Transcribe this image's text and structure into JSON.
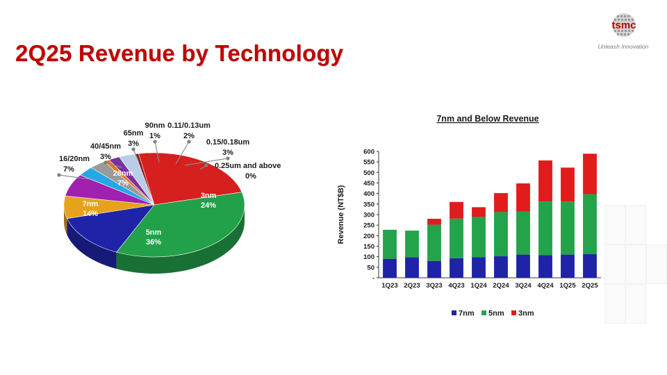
{
  "slide": {
    "title": "2Q25 Revenue by Technology",
    "logo_text": "tsmc",
    "logo_tagline": "Unleash Innovation"
  },
  "colors": {
    "title_red": "#c00000",
    "n7": "#1f23a8",
    "n5": "#23a34a",
    "n3": "#e01c1c"
  },
  "chart_data": [
    {
      "type": "pie",
      "title": "",
      "slices": [
        {
          "label": "3nm",
          "value": 24,
          "pct_text": "24%",
          "color": "#d61f1f"
        },
        {
          "label": "5nm",
          "value": 36,
          "pct_text": "36%",
          "color": "#22a04a"
        },
        {
          "label": "7nm",
          "value": 14,
          "pct_text": "14%",
          "color": "#1f23a8"
        },
        {
          "label": "16/20nm",
          "value": 7,
          "pct_text": "7%",
          "color": "#e6a21a"
        },
        {
          "label": "28nm",
          "value": 7,
          "pct_text": "7%",
          "color": "#a020b0"
        },
        {
          "label": "40/45nm",
          "value": 3,
          "pct_text": "3%",
          "color": "#25a7e8"
        },
        {
          "label": "65nm",
          "value": 3,
          "pct_text": "3%",
          "color": "#9a9a9a"
        },
        {
          "label": "90nm",
          "value": 1,
          "pct_text": "1%",
          "color": "#e8741c"
        },
        {
          "label": "0.11/0.13um",
          "value": 2,
          "pct_text": "2%",
          "color": "#7a30a0"
        },
        {
          "label": "0.15/0.18um",
          "value": 3,
          "pct_text": "3%",
          "color": "#b9cde8"
        },
        {
          "label": "0.25um and above",
          "value": 0,
          "pct_text": "0%",
          "color": "#8c1a1a"
        }
      ]
    },
    {
      "type": "bar",
      "stacked": true,
      "title": "7nm and Below Revenue",
      "xlabel": "",
      "ylabel": "Revenue (NT$B)",
      "ylim": [
        0,
        600
      ],
      "yticks": [
        "-",
        "50",
        "100",
        "150",
        "200",
        "250",
        "300",
        "350",
        "400",
        "450",
        "500",
        "550",
        "600"
      ],
      "categories": [
        "1Q23",
        "2Q23",
        "3Q23",
        "4Q23",
        "1Q24",
        "2Q24",
        "3Q24",
        "4Q24",
        "1Q25",
        "2Q25"
      ],
      "series": [
        {
          "name": "7nm",
          "color": "#1f23a8",
          "values": [
            90,
            97,
            80,
            93,
            98,
            102,
            110,
            107,
            110,
            112
          ]
        },
        {
          "name": "5nm",
          "color": "#23a34a",
          "values": [
            138,
            127,
            172,
            188,
            192,
            210,
            205,
            255,
            252,
            285
          ]
        },
        {
          "name": "3nm",
          "color": "#e01c1c",
          "values": [
            0,
            0,
            28,
            79,
            45,
            90,
            133,
            195,
            161,
            192
          ]
        }
      ],
      "legend_position": "bottom",
      "grid": false
    }
  ]
}
